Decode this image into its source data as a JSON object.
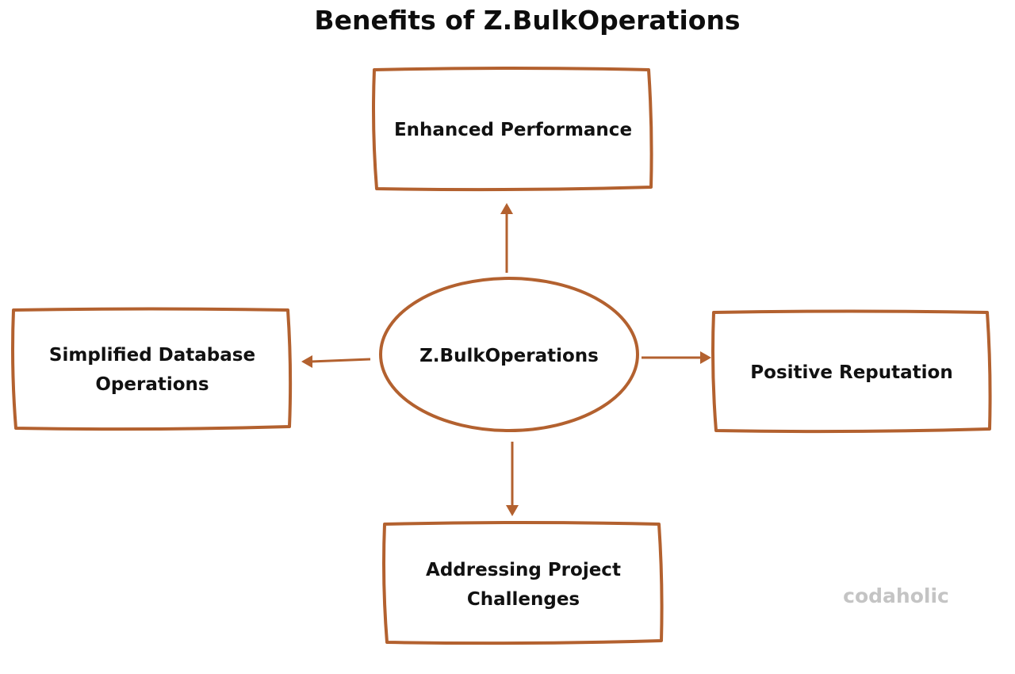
{
  "title": "Benefits of Z.BulkOperations",
  "center": {
    "label": "Z.BulkOperations"
  },
  "benefits": {
    "top": {
      "lines": [
        "Enhanced Performance"
      ]
    },
    "left": {
      "lines": [
        "Simplified Database",
        "Operations"
      ]
    },
    "right": {
      "lines": [
        "Positive Reputation"
      ]
    },
    "bottom": {
      "lines": [
        "Addressing Project",
        "Challenges"
      ]
    }
  },
  "watermark": "codaholic",
  "colors": {
    "accent": "#b3612f",
    "text": "#111111",
    "watermark": "#c4c4c4"
  }
}
